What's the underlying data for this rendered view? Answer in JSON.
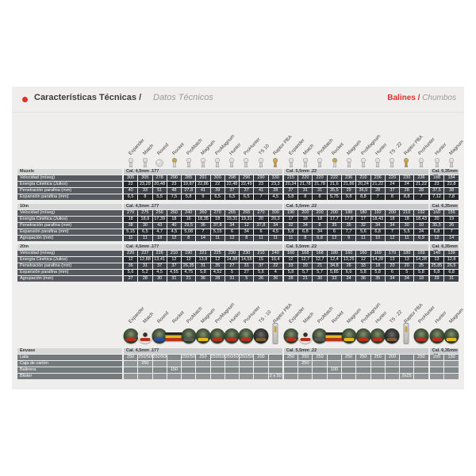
{
  "header": {
    "title": "Características Técnicas /",
    "subtitle": "Datos Técnicos",
    "right_primary": "Balines /",
    "right_secondary": "Chumbos"
  },
  "colors": {
    "accent_red": "#e03127",
    "panel_bg": "#efeeec",
    "caliber_band": "#c9cbcc",
    "cell_dark": "#24282d",
    "cell_mid": "#3c4147",
    "label_cell": "#565a5f",
    "packaging_cell_a": "#82878a",
    "packaging_cell_b": "#919598",
    "gold": "#c9a14c"
  },
  "calibers": [
    "Cal. 4,5mm .177",
    "Cal. 5,5mm .22",
    "Cal. 6,35mm .25"
  ],
  "top_icons": {
    "groups": [
      {
        "items": [
          {
            "label": "Expander",
            "type": "pellet"
          },
          {
            "label": "Match",
            "type": "wadcutter"
          },
          {
            "label": "Round",
            "type": "sphere"
          },
          {
            "label": "Rocket",
            "type": "goldtip"
          },
          {
            "label": "ProMatch",
            "type": "pellet"
          },
          {
            "label": "Magnum",
            "type": "pellet"
          },
          {
            "label": "ProMagnum",
            "type": "pellet"
          },
          {
            "label": "Hunter",
            "type": "pellet"
          },
          {
            "label": "ProHunter",
            "type": "pellet"
          },
          {
            "label": "TS 10",
            "type": "pellet"
          },
          {
            "label": "Raptor PBA",
            "type": "gold"
          }
        ]
      },
      {
        "items": [
          {
            "label": "Expander",
            "type": "pellet"
          },
          {
            "label": "Match",
            "type": "wadcutter"
          },
          {
            "label": "ProMatch",
            "type": "pellet"
          },
          {
            "label": "Rocket",
            "type": "goldtip"
          },
          {
            "label": "Magnum",
            "type": "pellet"
          },
          {
            "label": "ProMagnum",
            "type": "pellet"
          },
          {
            "label": "Hunter",
            "type": "pellet"
          },
          {
            "label": "TS - 22",
            "type": "pellet"
          },
          {
            "label": "Raptor PBA",
            "type": "gold"
          },
          {
            "label": "ProHunter",
            "type": "pellet"
          }
        ]
      },
      {
        "items": [
          {
            "label": "Hunter",
            "type": "pellet"
          },
          {
            "label": "Magnum",
            "type": "pellet"
          }
        ]
      }
    ]
  },
  "bottom_icons": {
    "groups": [
      {
        "items": [
          {
            "label": "Expander",
            "type": "tin",
            "band": "#b5301e"
          },
          {
            "label": "Match",
            "type": "tin-light",
            "band": "#b5301e"
          },
          {
            "label": "Round",
            "type": "tin",
            "band": "#2a4f9e"
          },
          {
            "label": "Rocket",
            "type": "box"
          },
          {
            "label": "ProMatch",
            "type": "tin",
            "band": "#5a5a5a"
          },
          {
            "label": "Magnum",
            "type": "tin",
            "band": "#e5b71e"
          },
          {
            "label": "ProMagnum",
            "type": "tin",
            "band": "#b5301e"
          },
          {
            "label": "Hunter",
            "type": "tin",
            "band": "#b5301e"
          },
          {
            "label": "ProHunter",
            "type": "tin",
            "band": "#b5301e"
          },
          {
            "label": "TS - 10",
            "type": "tin-dark",
            "band": "#7a5b33"
          },
          {
            "label": "Raptor PBA",
            "type": "blister"
          }
        ]
      },
      {
        "items": [
          {
            "label": "Expander",
            "type": "tin",
            "band": "#b5301e"
          },
          {
            "label": "Match",
            "type": "tin-light",
            "band": "#b5301e"
          },
          {
            "label": "ProMatch",
            "type": "tin",
            "band": "#5a5a5a"
          },
          {
            "label": "Rocket",
            "type": "box"
          },
          {
            "label": "Magnum",
            "type": "tin",
            "band": "#e5b71e"
          },
          {
            "label": "ProMagnum",
            "type": "tin",
            "band": "#b5301e"
          },
          {
            "label": "Hunter",
            "type": "tin",
            "band": "#b5301e"
          },
          {
            "label": "TS - 22",
            "type": "tin-dark",
            "band": "#7a5b33"
          },
          {
            "label": "Raptor PBA",
            "type": "blister"
          },
          {
            "label": "ProHunter",
            "type": "tin",
            "band": "#b5301e"
          }
        ]
      },
      {
        "items": [
          {
            "label": "Hunter",
            "type": "tin",
            "band": "#b5301e"
          },
          {
            "label": "Magnum",
            "type": "tin",
            "band": "#e5b71e"
          }
        ]
      }
    ]
  },
  "spec_tables": [
    {
      "section": "Muzzle",
      "row_labels": [
        "Velocidad (m/seg)",
        "Energía Cinética (Julios)",
        "Penetración parafina (mm)",
        "Expansión parafina (mm)"
      ],
      "groups": [
        {
          "caliber": "Cal. 4,5mm .177",
          "rows": [
            [
              "305",
              "305",
              "278",
              "290",
              "285",
              "291",
              "300",
              "298",
              "296",
              "290",
              "330"
            ],
            [
              "22",
              "23,29",
              "20,48",
              "23",
              "19,87",
              "22,86",
              "22",
              "22,48",
              "22,49",
              "23",
              "23,3"
            ],
            [
              "40",
              "33",
              "51",
              "48",
              "27,8",
              "41",
              "39",
              "37",
              "37",
              "41",
              "28"
            ],
            [
              "6,5",
              "8",
              "5,5",
              "7,5",
              "5,8",
              "9",
              "6,5",
              "6,5",
              "6,5",
              "7",
              "4,5"
            ]
          ]
        },
        {
          "caliber": "Cal. 5,5mm .22",
          "rows": [
            [
              "215",
              "220",
              "220",
              "222",
              "236",
              "210",
              "236",
              "220",
              "230",
              "236"
            ],
            [
              "20,34",
              "21,78",
              "21,78",
              "21,6",
              "21,86",
              "20,24",
              "21,22",
              "24",
              "24",
              "21,22"
            ],
            [
              "37",
              "31",
              "31",
              "35,5",
              "29",
              "36,5",
              "28",
              "37",
              "28",
              "28"
            ],
            [
              "5,8",
              "8",
              "8",
              "5,75",
              "9,8",
              "8,8",
              "7",
              "8",
              "8,8",
              "7"
            ]
          ]
        },
        {
          "caliber": "Cal. 6,35mm .25",
          "rows": [
            [
              "188",
              "184"
            ],
            [
              "23",
              "22,8"
            ],
            [
              "37,5",
              "38"
            ],
            [
              "7,12",
              "7,8"
            ]
          ]
        }
      ]
    },
    {
      "section": "10m",
      "row_labels": [
        "Velocidad (m/seg)",
        "Energía Cinética (Julios)",
        "Penetración parafina (mm)",
        "Expansión parafina (mm)",
        "Agrupación (mm)"
      ],
      "groups": [
        {
          "caliber": "Cal. 4,5mm .177",
          "rows": [
            [
              "270",
              "275",
              "256",
              "260",
              "240",
              "260",
              "270",
              "265",
              "265",
              "270",
              "300"
            ],
            [
              "18",
              "18,9",
              "17,39",
              "18",
              "16",
              "18,35",
              "18",
              "19,31",
              "19,31",
              "20",
              "20,3"
            ],
            [
              "38",
              "30",
              "43",
              "40",
              "29,5",
              "36",
              "37,8",
              "34",
              "12",
              "37,8",
              "34"
            ],
            [
              "5,15",
              "6,5",
              "4,7",
              "4,5",
              "5,08",
              "7",
              "5,15",
              "6",
              "34",
              "6",
              "4,5"
            ],
            [
              "11",
              "11",
              "18",
              "12",
              "8",
              "14",
              "11",
              "12",
              "8",
              "11",
              "11"
            ]
          ]
        },
        {
          "caliber": "Cal. 5,5mm .22",
          "rows": [
            [
              "190",
              "200",
              "200",
              "200",
              "188",
              "180",
              "192",
              "200",
              "210",
              "192"
            ],
            [
              "17",
              "18",
              "18",
              "17,7",
              "17,8",
              "17",
              "18,43",
              "18",
              "18",
              "18,43"
            ],
            [
              "32",
              "34",
              "8",
              "35",
              "35",
              "32",
              "34",
              "34",
              "30",
              "10"
            ],
            [
              "5,8",
              "6,8",
              "34",
              "6",
              "7,7",
              "5,6",
              "6,8",
              "7",
              "5,5",
              "24"
            ],
            [
              "11",
              "8",
              "6,8",
              "12",
              "9",
              "11",
              "10",
              "12",
              "11",
              "6,9"
            ]
          ]
        },
        {
          "caliber": "Cal. 6,35mm .25",
          "rows": [
            [
              "160",
              "155"
            ],
            [
              "20",
              "19"
            ],
            [
              "35,5",
              "26"
            ],
            [
              "6,8",
              "7"
            ],
            [
              "12",
              "14"
            ]
          ]
        }
      ]
    },
    {
      "section": "20m",
      "row_labels": [
        "Velocidad (m/seg)",
        "Energía Cinética (Julios)",
        "Penetración parafina (mm)",
        "Expansión parafina (mm)",
        "Agrupación (mm)"
      ],
      "groups": [
        {
          "caliber": "Cal. 4,5mm .177",
          "rows": [
            [
              "220",
              "227",
              "226",
              "210",
              "190",
              "221",
              "225",
              "230",
              "230",
              "210",
              "240"
            ],
            [
              "12",
              "12,88",
              "13,41",
              "12",
              "12",
              "13,8",
              "12",
              "14,88",
              "14,55",
              "15",
              "16,4"
            ],
            [
              "36",
              "31",
              "37",
              "37",
              "26,35",
              "31",
              "35",
              "27",
              "31",
              "37",
              "22"
            ],
            [
              "5,6",
              "5,2",
              "4,5",
              "4,55",
              "4,75",
              "5,8",
              "4,52",
              "5",
              "27",
              "5,6",
              "4"
            ],
            [
              "27",
              "28",
              "30",
              "31",
              "21",
              "36",
              "28",
              "31",
              "5",
              "26",
              "36"
            ]
          ]
        },
        {
          "caliber": "Cal. 5,5mm .22",
          "rows": [
            [
              "160",
              "168",
              "168",
              "180",
              "160",
              "160",
              "169",
              "170",
              "180",
              "169"
            ],
            [
              "12",
              "12,7",
              "12,7",
              "12,4",
              "13,25",
              "12",
              "14,28",
              "13",
              "13",
              "14,28"
            ],
            [
              "33",
              "20",
              "21",
              "34,8",
              "26",
              "33",
              "18",
              "20",
              "20",
              "25"
            ],
            [
              "5,8",
              "5,7",
              "5,7",
              "5,85",
              "6,6",
              "5,8",
              "5,8",
              "6",
              "5",
              "5,8"
            ],
            [
              "28",
              "21",
              "30",
              "33",
              "24",
              "36",
              "35",
              "34",
              "34",
              "18"
            ]
          ]
        },
        {
          "caliber": "Cal. 6,35mm .25",
          "rows": [
            [
              "140",
              "139"
            ],
            [
              "13",
              "12,8"
            ],
            [
              "25,85",
              "26,5"
            ],
            [
              "6,8",
              "6,8"
            ],
            [
              "39",
              "31"
            ]
          ]
        }
      ]
    }
  ],
  "packaging_table": {
    "section": "Envase",
    "row_labels": [
      "Lata",
      "Caja de cartón",
      "Balinera",
      "Blister"
    ],
    "groups": [
      {
        "caliber": "Cal. 4,5mm .177",
        "rows": [
          [
            "250",
            "250/500",
            "250/500",
            "",
            "250/500",
            "250",
            "250/500",
            "250/500",
            "250/500",
            "200",
            ""
          ],
          [
            "",
            "250",
            "",
            "",
            "",
            "",
            "",
            "",
            "",
            "",
            ""
          ],
          [
            "",
            "",
            "",
            "150",
            "",
            "",
            "",
            "",
            "",
            "",
            ""
          ],
          [
            "",
            "",
            "",
            "",
            "",
            "",
            "",
            "",
            "",
            "",
            "2 x 50"
          ]
        ]
      },
      {
        "caliber": "Cal. 5,5mm .22",
        "rows": [
          [
            "250",
            "250",
            "250",
            "",
            "250",
            "250",
            "250",
            "200",
            "",
            "250"
          ],
          [
            "",
            "250",
            "",
            "",
            "",
            "",
            "",
            "",
            "",
            ""
          ],
          [
            "",
            "",
            "",
            "100",
            "",
            "",
            "",
            "",
            "",
            ""
          ],
          [
            "",
            "",
            "",
            "",
            "",
            "",
            "",
            "",
            "2x25",
            ""
          ]
        ]
      },
      {
        "caliber": "Cal. 6,35mm .25",
        "rows": [
          [
            "200",
            "150"
          ],
          [
            "",
            ""
          ],
          [
            "",
            ""
          ],
          [
            "",
            ""
          ]
        ]
      }
    ]
  }
}
